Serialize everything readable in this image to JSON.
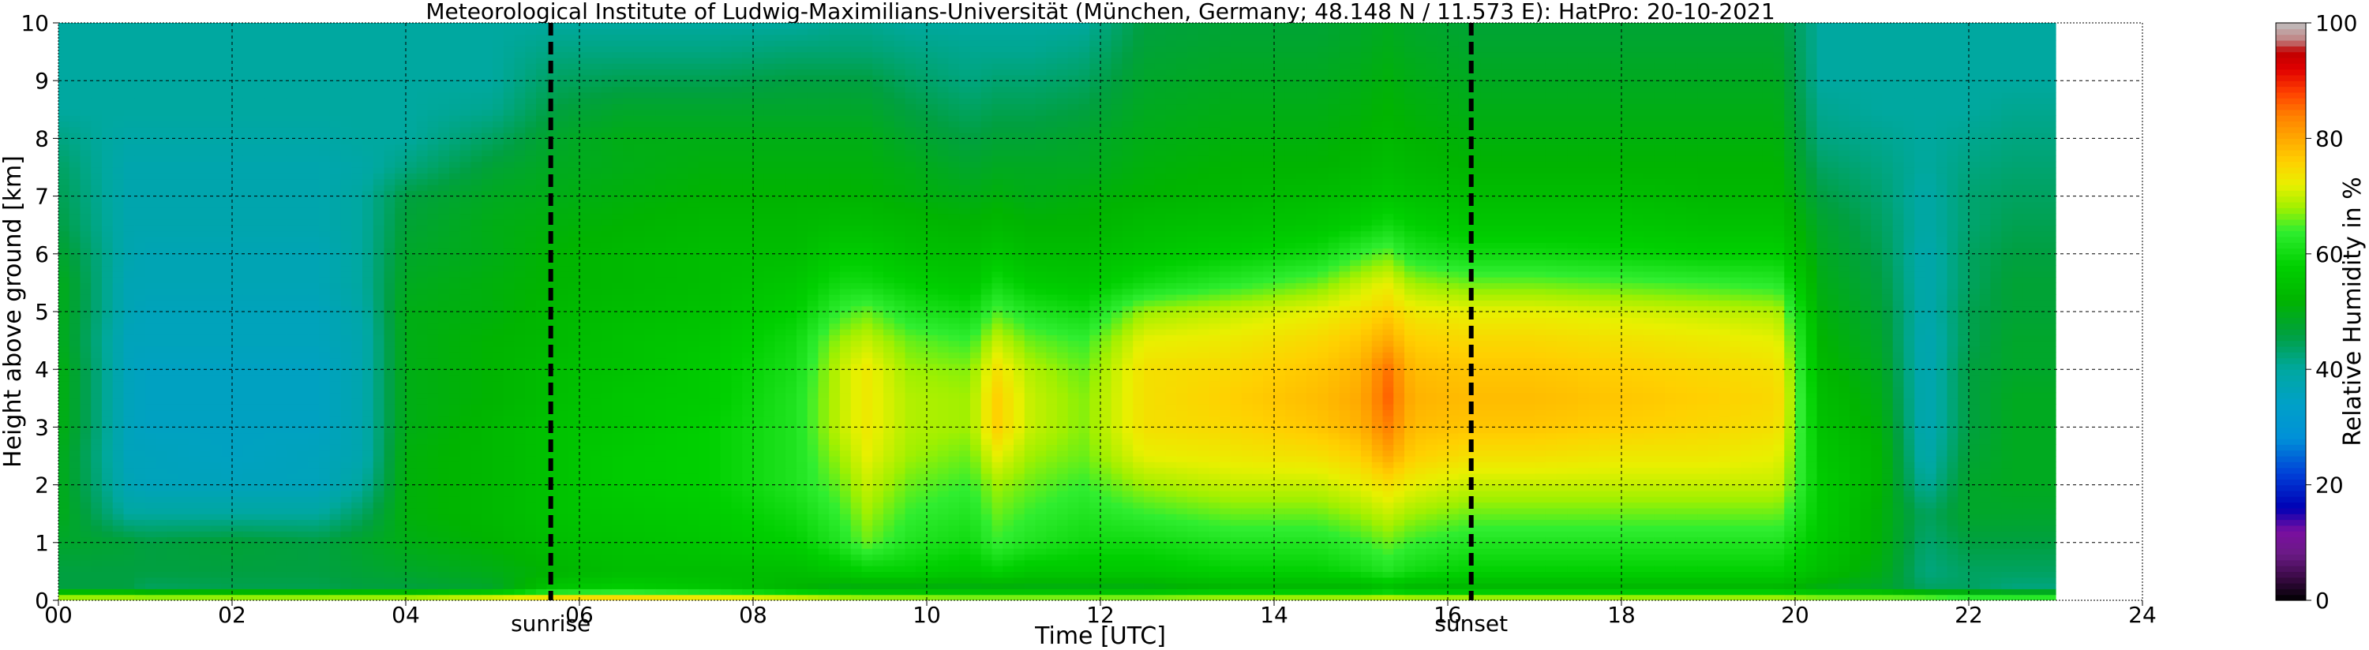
{
  "chart_data": {
    "type": "heatmap",
    "title": "Meteorological Institute of Ludwig-Maximilians-Universität (München, Germany; 48.148 N / 11.573 E):    HatPro: 20-10-2021",
    "xlabel": "Time [UTC]",
    "ylabel": "Height above ground [km]",
    "colorbar_label": "Relative Humidity in %",
    "xlim": [
      0,
      24
    ],
    "ylim": [
      0,
      10
    ],
    "x_ticks": [
      0,
      2,
      4,
      6,
      8,
      10,
      12,
      14,
      16,
      18,
      20,
      22,
      24
    ],
    "x_tick_labels": [
      "00",
      "02",
      "04",
      "06",
      "08",
      "10",
      "12",
      "14",
      "16",
      "18",
      "20",
      "22",
      "24"
    ],
    "y_ticks": [
      0,
      1,
      2,
      3,
      4,
      5,
      6,
      7,
      8,
      9,
      10
    ],
    "y_tick_labels": [
      "0",
      "1",
      "2",
      "3",
      "4",
      "5",
      "6",
      "7",
      "8",
      "9",
      "10"
    ],
    "colorbar_ticks": [
      0,
      20,
      40,
      60,
      80,
      100
    ],
    "colorbar_tick_labels": [
      "0",
      "20",
      "40",
      "60",
      "80",
      "100"
    ],
    "colorbar_range": [
      0,
      100
    ],
    "grid": true,
    "data_end_time": 23.0,
    "events": [
      {
        "label": "sunrise",
        "time": 5.67
      },
      {
        "label": "sunset",
        "time": 16.27
      }
    ],
    "colormap": [
      {
        "value": 0,
        "color": "#000000"
      },
      {
        "value": 4,
        "color": "#3a0a45"
      },
      {
        "value": 8,
        "color": "#6a1a85"
      },
      {
        "value": 12,
        "color": "#7a0fa0"
      },
      {
        "value": 16,
        "color": "#0000b4"
      },
      {
        "value": 22,
        "color": "#0040d8"
      },
      {
        "value": 28,
        "color": "#0090d8"
      },
      {
        "value": 34,
        "color": "#00a0c8"
      },
      {
        "value": 40,
        "color": "#00a8a0"
      },
      {
        "value": 46,
        "color": "#00a040"
      },
      {
        "value": 52,
        "color": "#00b400"
      },
      {
        "value": 58,
        "color": "#00d000"
      },
      {
        "value": 64,
        "color": "#30ee30"
      },
      {
        "value": 68,
        "color": "#a0f000"
      },
      {
        "value": 72,
        "color": "#e8f000"
      },
      {
        "value": 76,
        "color": "#ffd000"
      },
      {
        "value": 80,
        "color": "#ffa800"
      },
      {
        "value": 84,
        "color": "#ff8000"
      },
      {
        "value": 88,
        "color": "#ff4000"
      },
      {
        "value": 92,
        "color": "#e00000"
      },
      {
        "value": 95,
        "color": "#c00000"
      },
      {
        "value": 97,
        "color": "#c08080"
      },
      {
        "value": 100,
        "color": "#c0c0c0"
      }
    ],
    "rh_profiles": {
      "heights_km": [
        0.0,
        0.2,
        0.5,
        1.0,
        1.5,
        2.0,
        2.5,
        3.0,
        3.5,
        4.0,
        4.5,
        5.0,
        5.5,
        6.0,
        6.5,
        7.0,
        7.5,
        8.0,
        8.5,
        9.0,
        9.5,
        10.0
      ],
      "times_utc": [
        0.0,
        0.8,
        1.0,
        2.0,
        3.0,
        3.5,
        4.0,
        5.0,
        5.7,
        6.5,
        7.5,
        8.5,
        9.0,
        9.3,
        9.8,
        10.5,
        10.8,
        11.2,
        11.8,
        12.5,
        13.5,
        14.5,
        15.0,
        15.3,
        15.6,
        16.3,
        17.0,
        18.0,
        19.0,
        19.8,
        20.3,
        21.0,
        21.5,
        22.0,
        22.5,
        23.0
      ],
      "rh_percent": [
        [
          75,
          46,
          46,
          48,
          50,
          50,
          50,
          51,
          51,
          51,
          50,
          50,
          50,
          48,
          46,
          45,
          44,
          42,
          40,
          40,
          40,
          40
        ],
        [
          75,
          46,
          46,
          47,
          40,
          37,
          36,
          36,
          36,
          36,
          36,
          37,
          37,
          38,
          38,
          38,
          38,
          39,
          40,
          40,
          40,
          40
        ],
        [
          75,
          44,
          46,
          46,
          40,
          36,
          36,
          35,
          35,
          35,
          36,
          36,
          37,
          37,
          38,
          38,
          38,
          39,
          40,
          40,
          40,
          40
        ],
        [
          75,
          45,
          46,
          47,
          40,
          36,
          35,
          35,
          35,
          35,
          36,
          36,
          37,
          37,
          38,
          38,
          38,
          39,
          40,
          40,
          40,
          40
        ],
        [
          75,
          45,
          46,
          46,
          40,
          36,
          36,
          35,
          35,
          35,
          36,
          36,
          37,
          37,
          38,
          38,
          38,
          39,
          40,
          40,
          40,
          40
        ],
        [
          75,
          46,
          47,
          48,
          44,
          40,
          38,
          38,
          38,
          38,
          38,
          39,
          40,
          40,
          40,
          40,
          39,
          40,
          40,
          40,
          40,
          40
        ],
        [
          75,
          46,
          48,
          50,
          51,
          51,
          51,
          50,
          50,
          50,
          50,
          50,
          49,
          48,
          47,
          46,
          42,
          40,
          40,
          40,
          40,
          40
        ],
        [
          78,
          48,
          50,
          52,
          53,
          53,
          53,
          53,
          52,
          52,
          52,
          51,
          51,
          50,
          50,
          49,
          47,
          44,
          41,
          40,
          40,
          40
        ],
        [
          80,
          56,
          52,
          54,
          55,
          55,
          55,
          55,
          54,
          54,
          53,
          53,
          52,
          52,
          51,
          50,
          49,
          48,
          46,
          44,
          42,
          40
        ],
        [
          80,
          58,
          54,
          55,
          56,
          57,
          57,
          56,
          56,
          55,
          55,
          54,
          53,
          53,
          52,
          51,
          50,
          50,
          48,
          45,
          42,
          40
        ],
        [
          78,
          56,
          54,
          56,
          57,
          58,
          58,
          58,
          57,
          57,
          56,
          55,
          54,
          54,
          53,
          52,
          51,
          50,
          48,
          45,
          42,
          40
        ],
        [
          76,
          52,
          54,
          58,
          60,
          62,
          62,
          62,
          62,
          61,
          60,
          58,
          56,
          54,
          53,
          52,
          51,
          50,
          48,
          46,
          43,
          40
        ],
        [
          74,
          50,
          56,
          62,
          64,
          66,
          68,
          70,
          70,
          70,
          68,
          64,
          60,
          57,
          54,
          52,
          51,
          50,
          48,
          46,
          43,
          41
        ],
        [
          73,
          50,
          58,
          66,
          68,
          70,
          72,
          73,
          73,
          73,
          70,
          66,
          60,
          57,
          54,
          52,
          51,
          50,
          48,
          46,
          43,
          41
        ],
        [
          73,
          50,
          58,
          62,
          64,
          66,
          68,
          69,
          69,
          68,
          66,
          62,
          58,
          55,
          53,
          51,
          50,
          48,
          46,
          44,
          42,
          40
        ],
        [
          72,
          50,
          56,
          60,
          62,
          64,
          66,
          68,
          68,
          67,
          64,
          60,
          56,
          54,
          52,
          50,
          48,
          46,
          44,
          42,
          41,
          40
        ],
        [
          72,
          50,
          58,
          64,
          66,
          68,
          72,
          76,
          76,
          74,
          70,
          65,
          60,
          56,
          53,
          51,
          49,
          47,
          45,
          43,
          41,
          40
        ],
        [
          72,
          50,
          56,
          62,
          64,
          66,
          68,
          70,
          70,
          69,
          66,
          62,
          57,
          54,
          52,
          50,
          49,
          47,
          45,
          43,
          41,
          40
        ],
        [
          72,
          50,
          56,
          60,
          62,
          64,
          66,
          67,
          67,
          66,
          64,
          60,
          56,
          54,
          52,
          51,
          49,
          48,
          46,
          44,
          42,
          40
        ],
        [
          72,
          50,
          56,
          60,
          64,
          68,
          72,
          74,
          74,
          74,
          72,
          68,
          60,
          56,
          54,
          52,
          51,
          50,
          49,
          48,
          47,
          46
        ],
        [
          73,
          52,
          58,
          62,
          66,
          70,
          73,
          75,
          76,
          75,
          73,
          70,
          63,
          58,
          55,
          53,
          52,
          51,
          50,
          49,
          48,
          47
        ],
        [
          73,
          52,
          58,
          62,
          66,
          70,
          74,
          77,
          78,
          77,
          75,
          72,
          66,
          60,
          56,
          54,
          52,
          51,
          50,
          49,
          48,
          47
        ],
        [
          73,
          52,
          60,
          64,
          68,
          72,
          76,
          79,
          80,
          79,
          77,
          74,
          70,
          64,
          58,
          55,
          53,
          52,
          51,
          50,
          49,
          48
        ],
        [
          74,
          54,
          62,
          66,
          70,
          74,
          80,
          84,
          86,
          85,
          80,
          76,
          72,
          66,
          60,
          56,
          54,
          53,
          52,
          51,
          50,
          49
        ],
        [
          73,
          52,
          60,
          64,
          68,
          72,
          76,
          78,
          79,
          78,
          76,
          73,
          68,
          62,
          58,
          55,
          53,
          52,
          51,
          50,
          49,
          48
        ],
        [
          73,
          52,
          58,
          62,
          66,
          70,
          74,
          77,
          78,
          77,
          75,
          72,
          66,
          60,
          56,
          54,
          52,
          51,
          50,
          49,
          48,
          47
        ],
        [
          73,
          52,
          58,
          62,
          66,
          70,
          74,
          77,
          78,
          77,
          75,
          72,
          66,
          60,
          56,
          54,
          52,
          51,
          50,
          49,
          48,
          47
        ],
        [
          73,
          52,
          58,
          62,
          66,
          70,
          73,
          76,
          77,
          76,
          74,
          71,
          65,
          59,
          56,
          54,
          52,
          51,
          50,
          49,
          48,
          47
        ],
        [
          73,
          52,
          58,
          62,
          66,
          70,
          73,
          75,
          76,
          75,
          73,
          70,
          64,
          58,
          55,
          53,
          52,
          51,
          50,
          49,
          48,
          47
        ],
        [
          73,
          52,
          58,
          62,
          66,
          70,
          72,
          74,
          75,
          74,
          72,
          69,
          63,
          58,
          55,
          53,
          52,
          51,
          50,
          49,
          48,
          47
        ],
        [
          72,
          50,
          54,
          56,
          57,
          57,
          56,
          55,
          54,
          53,
          52,
          51,
          50,
          49,
          48,
          46,
          44,
          42,
          41,
          40,
          40,
          40
        ],
        [
          72,
          48,
          50,
          51,
          51,
          52,
          52,
          51,
          50,
          49,
          48,
          47,
          46,
          45,
          44,
          43,
          42,
          41,
          40,
          40,
          40,
          40
        ],
        [
          72,
          44,
          42,
          43,
          44,
          40,
          38,
          37,
          37,
          37,
          37,
          38,
          38,
          38,
          39,
          39,
          40,
          40,
          40,
          40,
          40,
          40
        ],
        [
          70,
          44,
          44,
          46,
          48,
          48,
          47,
          46,
          46,
          46,
          45,
          45,
          44,
          44,
          43,
          43,
          42,
          41,
          40,
          40,
          40,
          40
        ],
        [
          70,
          42,
          44,
          46,
          48,
          49,
          49,
          49,
          49,
          48,
          48,
          47,
          47,
          46,
          45,
          44,
          43,
          42,
          41,
          40,
          40,
          40
        ],
        [
          70,
          42,
          44,
          46,
          48,
          49,
          49,
          49,
          49,
          48,
          48,
          47,
          47,
          46,
          45,
          44,
          43,
          42,
          41,
          40,
          40,
          40
        ]
      ]
    }
  }
}
